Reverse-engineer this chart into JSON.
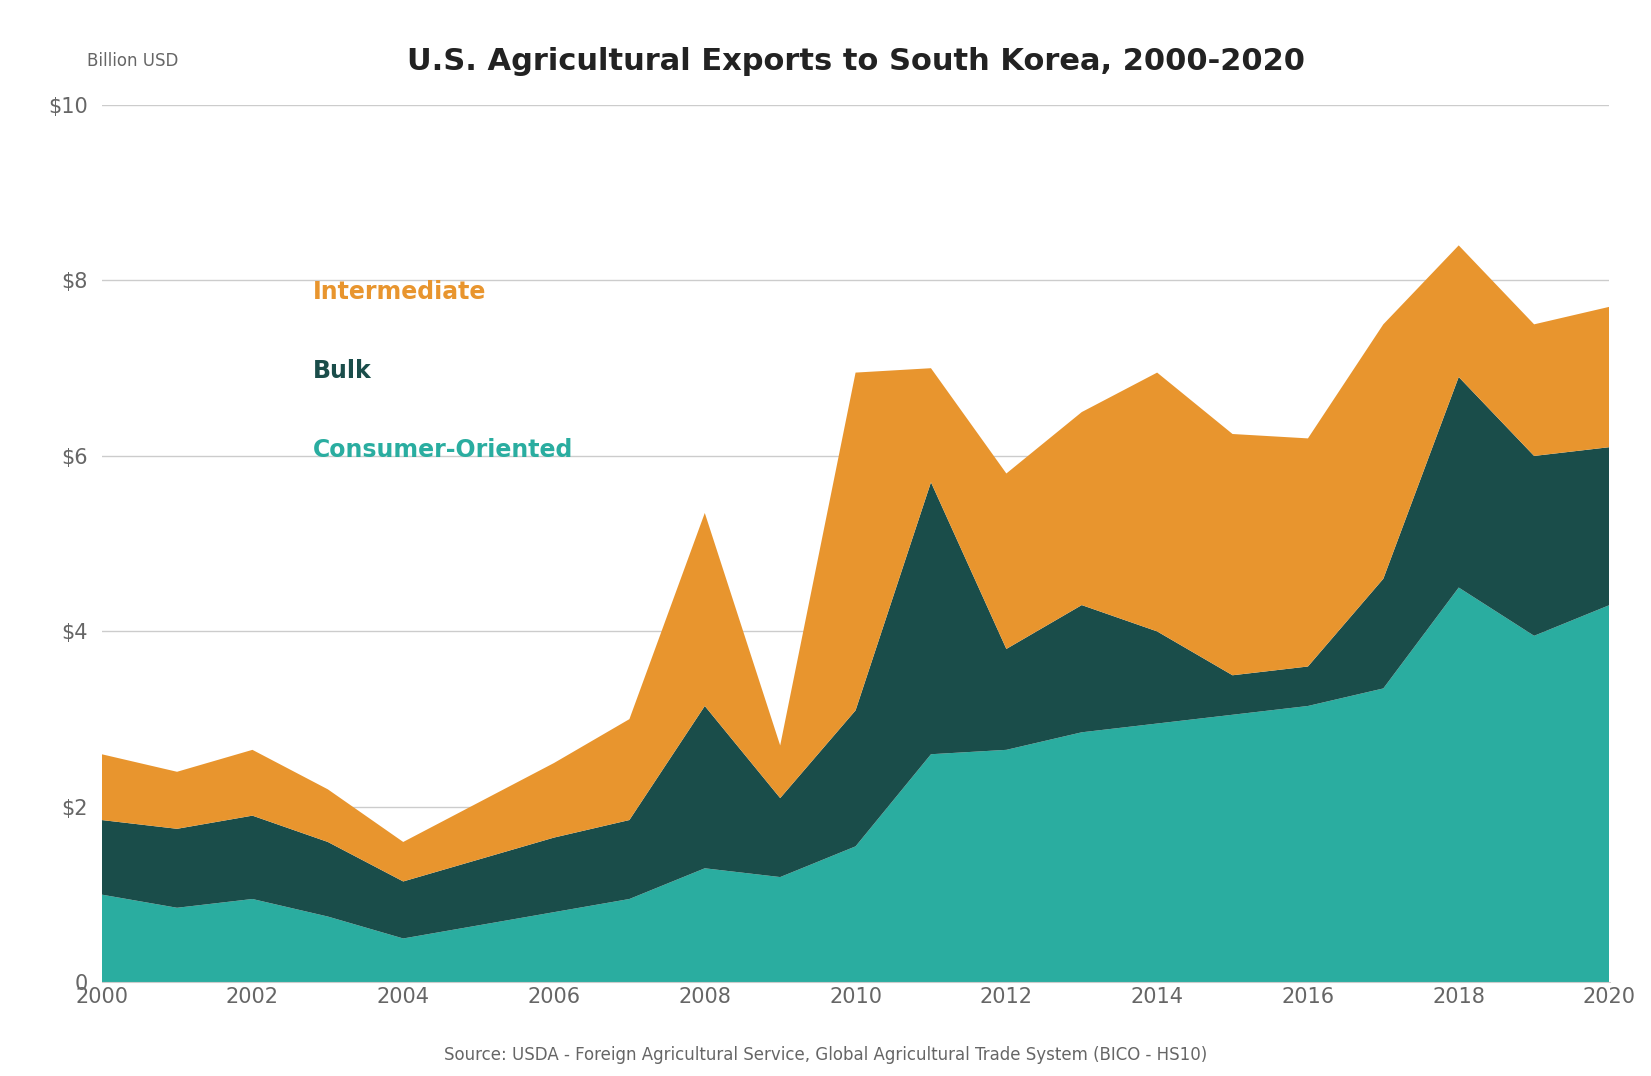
{
  "title": "U.S. Agricultural Exports to South Korea, 2000-2020",
  "ylabel": "Billion USD",
  "source": "Source: USDA - Foreign Agricultural Service, Global Agricultural Trade System (BICO - HS10)",
  "years": [
    2000,
    2001,
    2002,
    2003,
    2004,
    2005,
    2006,
    2007,
    2008,
    2009,
    2010,
    2011,
    2012,
    2013,
    2014,
    2015,
    2016,
    2017,
    2018,
    2019,
    2020
  ],
  "consumer_oriented": [
    1.0,
    0.85,
    0.95,
    0.75,
    0.5,
    0.65,
    0.8,
    0.95,
    1.3,
    1.2,
    1.55,
    2.6,
    2.65,
    2.85,
    2.95,
    3.05,
    3.15,
    3.35,
    4.5,
    3.95,
    4.3
  ],
  "bulk_only": [
    0.85,
    0.9,
    0.95,
    0.85,
    0.65,
    0.75,
    0.85,
    0.9,
    1.85,
    0.9,
    1.55,
    3.1,
    1.15,
    1.45,
    1.05,
    0.45,
    0.45,
    1.25,
    2.4,
    2.05,
    1.8
  ],
  "intermediate": [
    0.75,
    0.65,
    0.75,
    0.6,
    0.45,
    0.65,
    0.85,
    1.15,
    2.2,
    0.6,
    3.85,
    1.3,
    2.0,
    2.2,
    2.95,
    2.75,
    2.6,
    2.9,
    1.5,
    1.5,
    1.6
  ],
  "color_consumer": "#2aada0",
  "color_bulk": "#1a4d4a",
  "color_intermediate": "#e8952e",
  "color_legend_intermediate": "#e8952e",
  "color_legend_bulk": "#1a4d4a",
  "color_legend_consumer": "#2aada0",
  "background_color": "#ffffff",
  "grid_color": "#cccccc",
  "axis_label_color": "#666666",
  "title_color": "#222222",
  "ylim": [
    0,
    10
  ],
  "yticks": [
    0,
    2,
    4,
    6,
    8,
    10
  ]
}
